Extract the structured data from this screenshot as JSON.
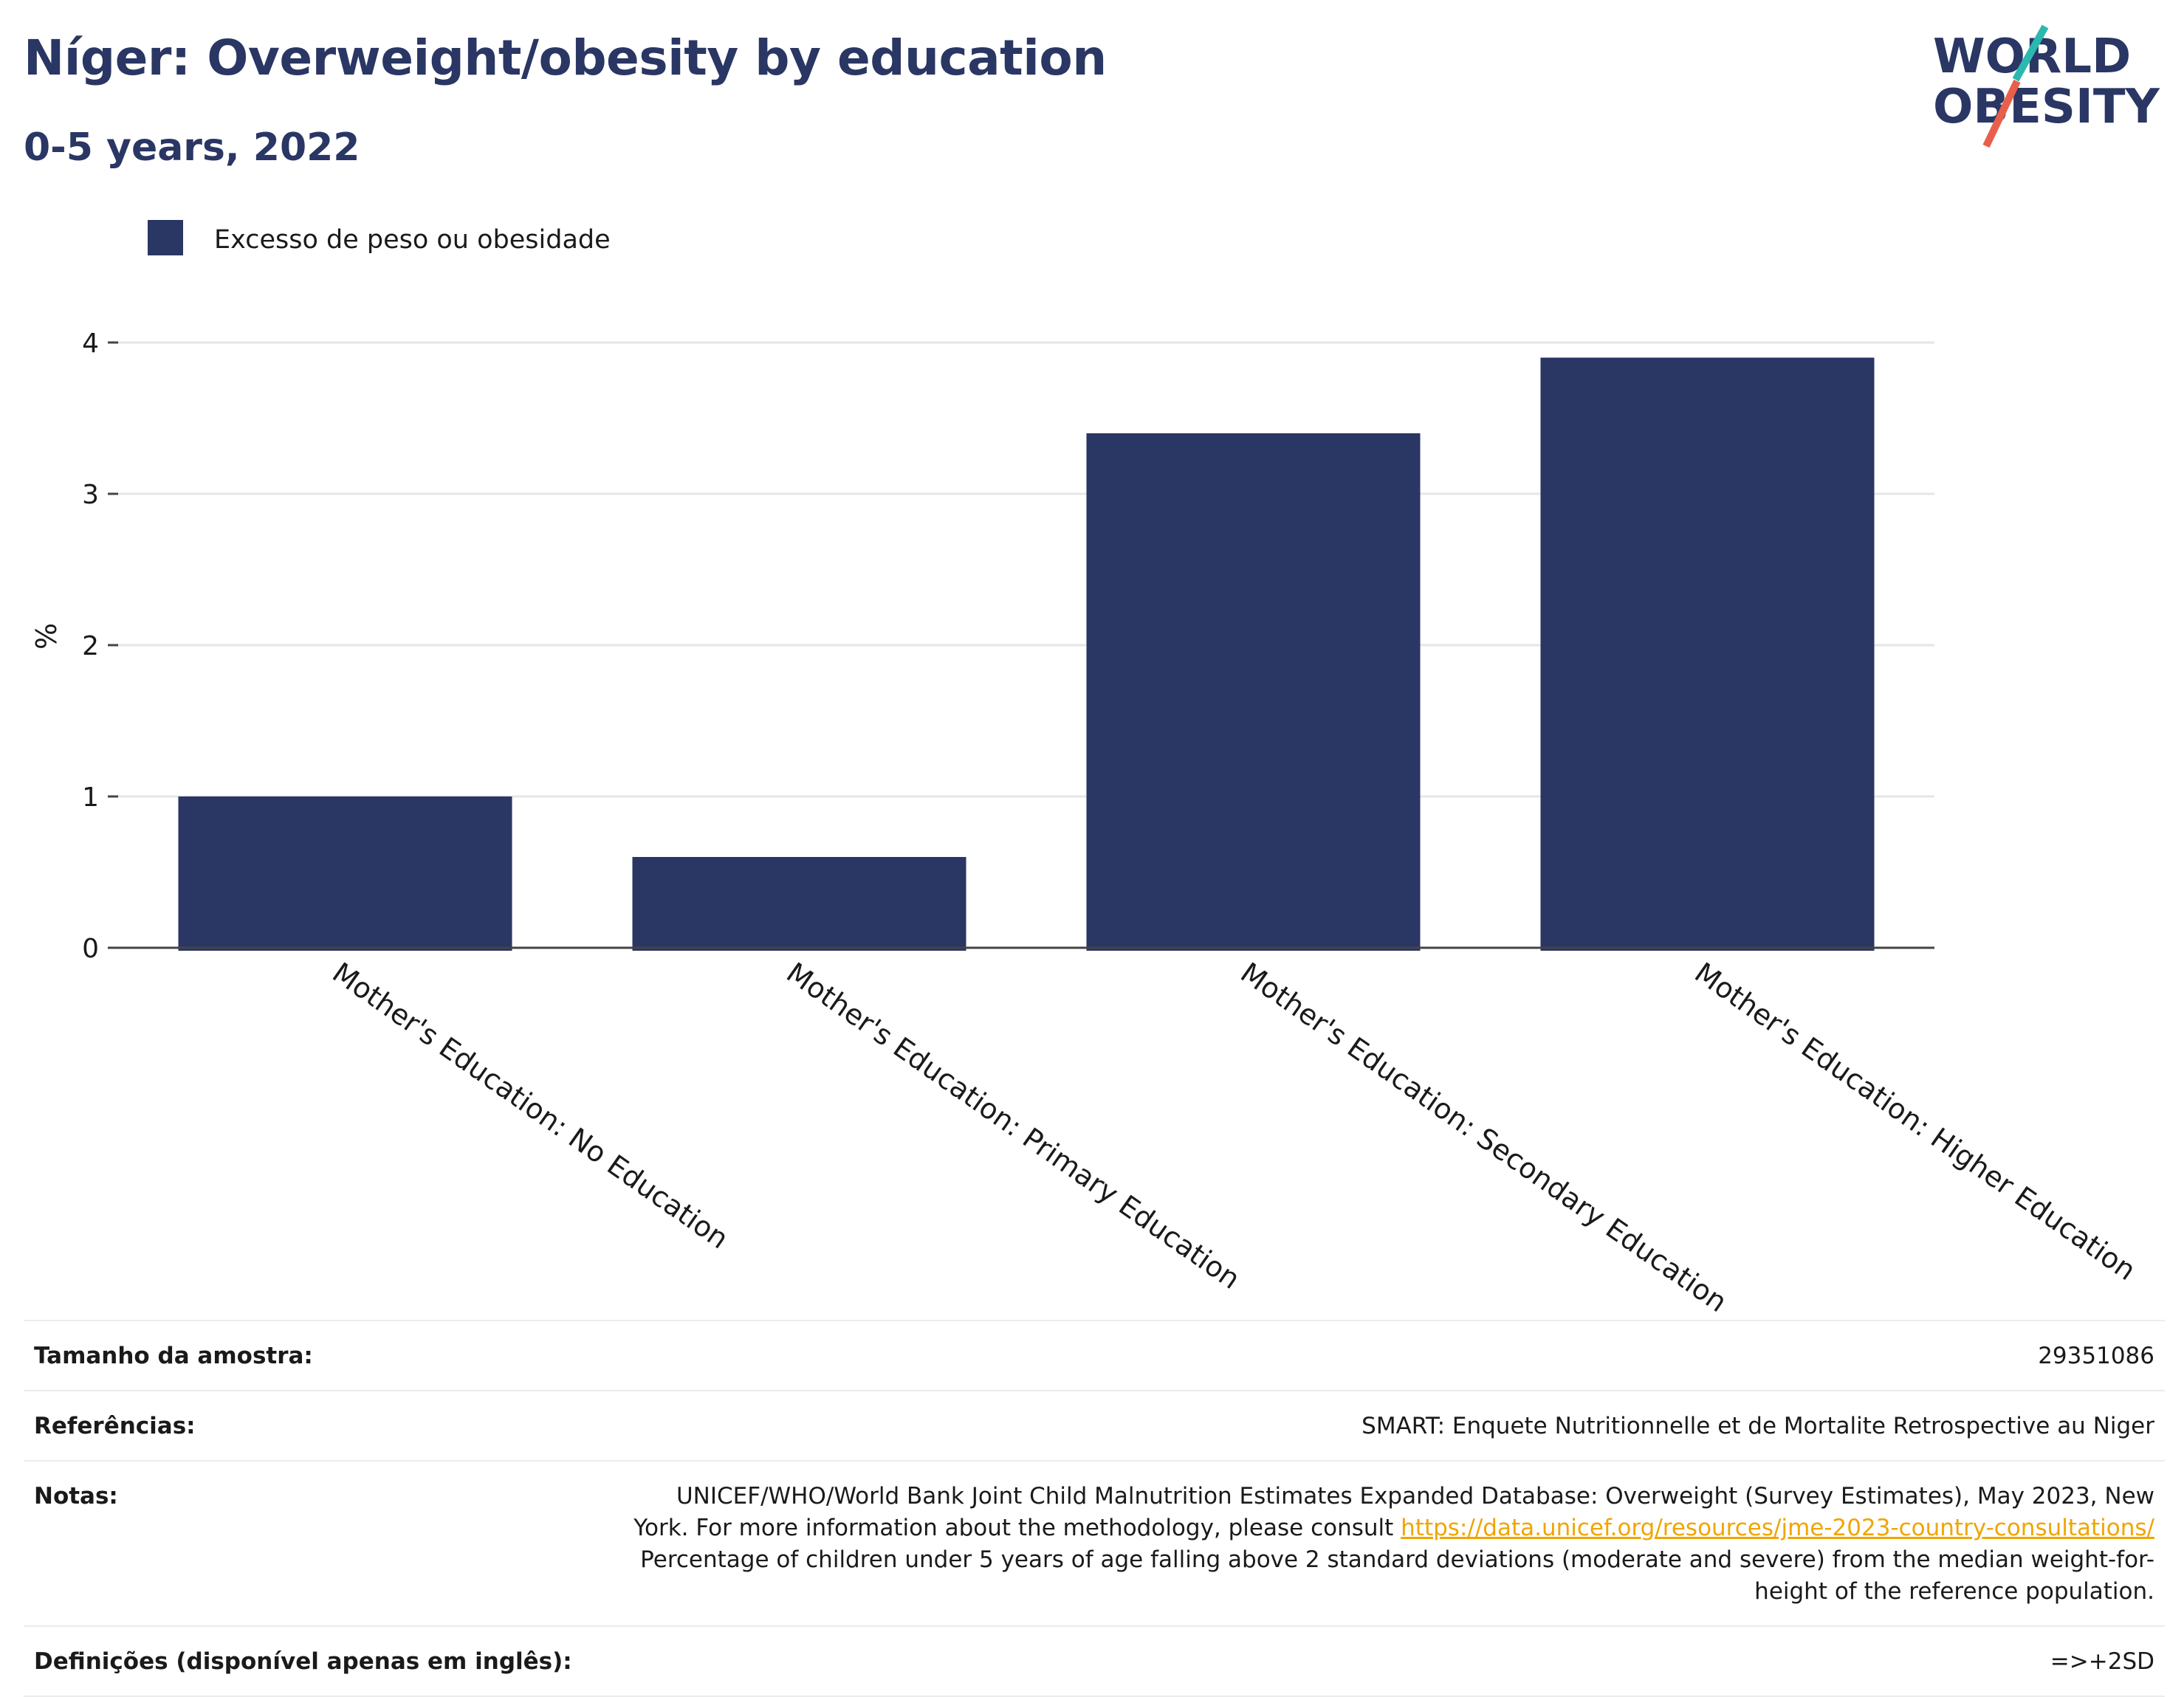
{
  "header": {
    "title": "Níger: Overweight/obesity by education",
    "subtitle": "0-5 years, 2022"
  },
  "logo": {
    "line1": "WORLD",
    "line2": "OBESITY",
    "accent_teal": "#2bb8b0",
    "accent_red": "#e8604c"
  },
  "chart_data": {
    "type": "bar",
    "categories": [
      "Mother's Education: No Education",
      "Mother's Education: Primary Education",
      "Mother's Education: Secondary Education",
      "Mother's Education: Higher Education"
    ],
    "series": [
      {
        "name": "Excesso de peso ou obesidade",
        "values": [
          1.0,
          0.6,
          3.4,
          3.9
        ],
        "color": "#2a3663"
      }
    ],
    "ylabel": "%",
    "ylim": [
      0,
      4.2
    ],
    "yticks": [
      "0",
      "1",
      "2",
      "3",
      "4"
    ],
    "grid": true,
    "legend": "top-left"
  },
  "footer": {
    "sample_label": "Tamanho da amostra:",
    "sample_value": "29351086",
    "refs_label": "Referências:",
    "refs_value": "SMART: Enquete Nutritionnelle et de Mortalite Retrospective au Niger",
    "notes_label": "Notas:",
    "notes_text1": "UNICEF/WHO/World Bank Joint Child Malnutrition Estimates Expanded Database: Overweight (Survey Estimates), May 2023, New York. For more information about the methodology, please consult ",
    "notes_link": "https://data.unicef.org/resources/jme-2023-country-consultations/",
    "notes_text2": "Percentage of children under 5 years of age falling above 2 standard deviations (moderate and severe) from the median weight-for-height of the reference population.",
    "defs_label": "Definições (disponível apenas em inglês):",
    "defs_value": "=>+2SD"
  }
}
